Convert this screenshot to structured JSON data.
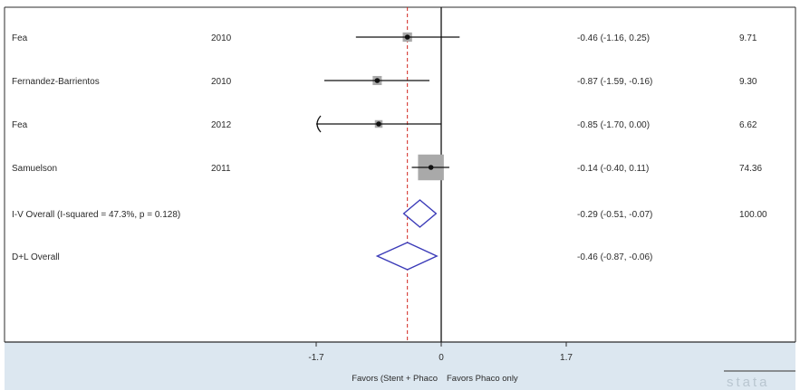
{
  "chart_data": {
    "type": "forest",
    "xlim": [
      -1.7,
      1.7
    ],
    "xticks": [
      "-1.7",
      "0",
      "1.7"
    ],
    "null_line": 0,
    "overall_dashed_line": -0.46,
    "favors_left": "Favors (Stent + Phaco",
    "favors_right": "Favors Phaco only",
    "studies": [
      {
        "study": "Fea",
        "year": "2010",
        "est": -0.46,
        "lo": -1.16,
        "hi": 0.25,
        "ci_label": "-0.46 (-1.16, 0.25)",
        "weight": "9.71"
      },
      {
        "study": "Fernandez-Barrientos",
        "year": "2010",
        "est": -0.87,
        "lo": -1.59,
        "hi": -0.16,
        "ci_label": "-0.87 (-1.59, -0.16)",
        "weight": "9.30"
      },
      {
        "study": "Fea",
        "year": "2012",
        "est": -0.85,
        "lo": -1.7,
        "hi": 0.0,
        "ci_label": "-0.85 (-1.70, 0.00)",
        "weight": "6.62",
        "lo_truncated": true
      },
      {
        "study": "Samuelson",
        "year": "2011",
        "est": -0.14,
        "lo": -0.4,
        "hi": 0.11,
        "ci_label": "-0.14 (-0.40, 0.11)",
        "weight": "74.36"
      }
    ],
    "overall": [
      {
        "label": "I-V Overall  (I-squared = 47.3%, p = 0.128)",
        "est": -0.29,
        "lo": -0.51,
        "hi": -0.07,
        "ci_label": "-0.29 (-0.51, -0.07)",
        "weight": "100.00"
      },
      {
        "label": "D+L Overall",
        "est": -0.46,
        "lo": -0.87,
        "hi": -0.06,
        "ci_label": "-0.46 (-0.87, -0.06)",
        "weight": ""
      }
    ]
  },
  "colors": {
    "frame": "#2b2b2b",
    "axis_band": "#dce7f0",
    "diamond": "#3a3ab8",
    "dashed": "#d2271f",
    "weight_box": "#a9a9a9",
    "line": "#111111"
  },
  "brand": "stata"
}
